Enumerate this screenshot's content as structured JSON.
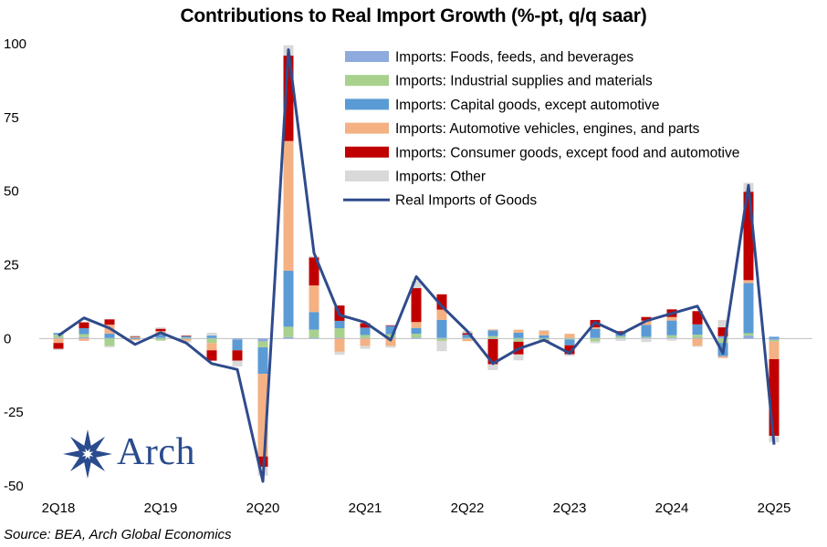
{
  "chart_data": {
    "type": "bar",
    "title": "Contributions to Real Import Growth (%-pt, q/q saar)",
    "source": "Source: BEA, Arch Global Economics",
    "logo_text": "Arch",
    "ylim": [
      -50,
      100
    ],
    "yticks": [
      100,
      75,
      50,
      25,
      0,
      -25,
      -50
    ],
    "xtick_labels": [
      {
        "label": "2Q18",
        "index": 0
      },
      {
        "label": "2Q19",
        "index": 4
      },
      {
        "label": "2Q20",
        "index": 8
      },
      {
        "label": "2Q21",
        "index": 12
      },
      {
        "label": "2Q22",
        "index": 16
      },
      {
        "label": "2Q23",
        "index": 20
      },
      {
        "label": "2Q24",
        "index": 24
      },
      {
        "label": "2Q25",
        "index": 28
      }
    ],
    "categories": [
      "2Q18",
      "3Q18",
      "4Q18",
      "1Q19",
      "2Q19",
      "3Q19",
      "4Q19",
      "1Q20",
      "2Q20",
      "3Q20",
      "4Q20",
      "1Q21",
      "2Q21",
      "3Q21",
      "4Q21",
      "1Q22",
      "2Q22",
      "3Q22",
      "4Q22",
      "1Q23",
      "2Q23",
      "3Q23",
      "4Q23",
      "1Q24",
      "2Q24",
      "3Q24",
      "4Q24",
      "1Q25",
      "2Q25"
    ],
    "series": [
      {
        "name": "Imports: Foods, feeds, and beverages",
        "color": "#8faadc",
        "values": [
          0.3,
          0.5,
          0.2,
          0.3,
          0.3,
          -0.2,
          0.2,
          -0.5,
          -1.0,
          0.5,
          0.3,
          0.3,
          0.2,
          0.3,
          0.3,
          0.3,
          0.3,
          -0.2,
          0.2,
          0.2,
          0.2,
          0.3,
          0.2,
          0.3,
          0.3,
          0.3,
          0.8,
          1.0,
          -0.5
        ]
      },
      {
        "name": "Imports: Industrial supplies and materials",
        "color": "#a9d18e",
        "values": [
          1.0,
          1.0,
          -2.5,
          0.2,
          -0.7,
          0.3,
          -1.5,
          0.0,
          -2.0,
          3.5,
          2.7,
          3.2,
          1.0,
          1.2,
          1.3,
          -0.8,
          -0.2,
          0.8,
          -1.1,
          -0.6,
          -0.3,
          -1.0,
          0.6,
          0.3,
          0.8,
          1.0,
          -1.5,
          0.8,
          -0.5
        ]
      },
      {
        "name": "Imports: Capital goods, except automotive",
        "color": "#5b9bd5",
        "values": [
          0.6,
          2.0,
          1.5,
          -0.2,
          1.0,
          0.5,
          0.8,
          -3.5,
          -9.0,
          19.0,
          6.0,
          2.5,
          2.5,
          2.8,
          2.0,
          6.0,
          1.0,
          2.0,
          1.8,
          0.9,
          -2.0,
          3.0,
          1.0,
          4.0,
          5.0,
          3.5,
          -4.5,
          17.0,
          0.6
        ]
      },
      {
        "name": "Imports: Automotive vehicles, engines, and parts",
        "color": "#f4b183",
        "values": [
          -1.5,
          -0.8,
          3.0,
          -0.4,
          1.2,
          -0.6,
          -2.5,
          0.0,
          -28.0,
          44.0,
          9.0,
          -4.5,
          -2.5,
          -2.5,
          2.0,
          3.5,
          -0.7,
          0.3,
          1.0,
          1.5,
          1.4,
          0.5,
          0.3,
          1.5,
          1.2,
          -2.5,
          -0.6,
          1.0,
          -6.0
        ]
      },
      {
        "name": "Imports: Consumer goods, except food and automotive",
        "color": "#c00000",
        "values": [
          -2.0,
          2.0,
          1.8,
          0.2,
          0.8,
          0.2,
          -3.5,
          -3.5,
          -3.5,
          29.0,
          9.5,
          5.2,
          1.5,
          0.2,
          11.5,
          5.2,
          0.5,
          -8.5,
          -4.3,
          -0.5,
          -3.0,
          2.5,
          0.4,
          1.2,
          2.6,
          4.5,
          3.0,
          30.0,
          -26.0
        ]
      },
      {
        "name": "Imports: Other",
        "color": "#d9d9d9",
        "values": [
          -0.4,
          0.0,
          -0.5,
          0.4,
          0.5,
          -0.6,
          1.0,
          -2.0,
          -3.0,
          3.5,
          0.5,
          -1.0,
          -1.0,
          -0.6,
          2.5,
          -3.5,
          0.8,
          -2.0,
          -2.0,
          0.3,
          -0.6,
          -0.6,
          -0.8,
          -1.2,
          -0.7,
          -0.3,
          2.5,
          3.0,
          -2.2
        ]
      },
      {
        "name": "Real Imports of Goods",
        "color": "#2f4b8c",
        "kind": "line",
        "values": [
          1.0,
          7.0,
          3.5,
          -2.0,
          2.0,
          -1.5,
          -8.5,
          -10.5,
          -48.5,
          98.0,
          29.0,
          8.0,
          5.5,
          -0.5,
          21.0,
          11.0,
          2.5,
          -8.5,
          -3.5,
          -0.5,
          -5.0,
          5.5,
          1.5,
          6.0,
          8.5,
          11.0,
          -5.0,
          52.0,
          -36.0
        ]
      }
    ]
  }
}
